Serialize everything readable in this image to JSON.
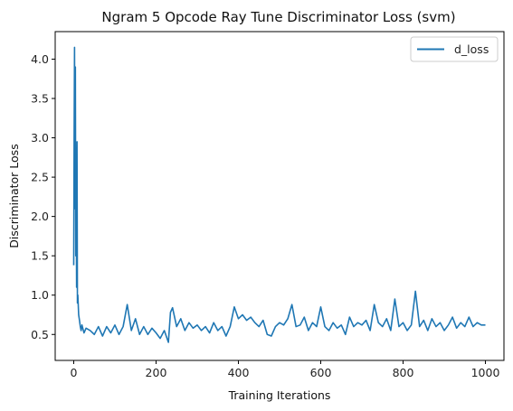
{
  "chart_data": {
    "type": "line",
    "title": "Ngram 5 Opcode Ray Tune Discriminator Loss (svm)",
    "xlabel": "Training Iterations",
    "ylabel": "Discriminator Loss",
    "xlim": [
      -45,
      1045
    ],
    "ylim": [
      0.17,
      4.35
    ],
    "xticks": [
      0,
      200,
      400,
      600,
      800,
      1000
    ],
    "yticks": [
      0.5,
      1.0,
      1.5,
      2.0,
      2.5,
      3.0,
      3.5,
      4.0
    ],
    "grid": false,
    "legend_position": "top-right",
    "series": [
      {
        "name": "d_loss",
        "color": "#1f77b4",
        "points": [
          [
            0,
            1.38
          ],
          [
            1,
            3.0
          ],
          [
            2,
            4.15
          ],
          [
            3,
            2.1
          ],
          [
            4,
            3.9
          ],
          [
            5,
            1.5
          ],
          [
            6,
            2.4
          ],
          [
            7,
            1.1
          ],
          [
            8,
            2.95
          ],
          [
            9,
            0.9
          ],
          [
            10,
            1.0
          ],
          [
            12,
            0.75
          ],
          [
            14,
            0.68
          ],
          [
            16,
            0.6
          ],
          [
            18,
            0.55
          ],
          [
            20,
            0.62
          ],
          [
            25,
            0.52
          ],
          [
            30,
            0.58
          ],
          [
            40,
            0.55
          ],
          [
            50,
            0.5
          ],
          [
            60,
            0.6
          ],
          [
            70,
            0.48
          ],
          [
            80,
            0.6
          ],
          [
            90,
            0.52
          ],
          [
            100,
            0.62
          ],
          [
            110,
            0.5
          ],
          [
            120,
            0.6
          ],
          [
            130,
            0.88
          ],
          [
            140,
            0.55
          ],
          [
            150,
            0.7
          ],
          [
            160,
            0.5
          ],
          [
            170,
            0.6
          ],
          [
            180,
            0.5
          ],
          [
            190,
            0.58
          ],
          [
            200,
            0.52
          ],
          [
            210,
            0.45
          ],
          [
            220,
            0.55
          ],
          [
            230,
            0.4
          ],
          [
            235,
            0.78
          ],
          [
            240,
            0.84
          ],
          [
            250,
            0.6
          ],
          [
            260,
            0.7
          ],
          [
            270,
            0.55
          ],
          [
            280,
            0.65
          ],
          [
            290,
            0.58
          ],
          [
            300,
            0.62
          ],
          [
            310,
            0.55
          ],
          [
            320,
            0.6
          ],
          [
            330,
            0.52
          ],
          [
            340,
            0.65
          ],
          [
            350,
            0.55
          ],
          [
            360,
            0.6
          ],
          [
            370,
            0.48
          ],
          [
            380,
            0.6
          ],
          [
            390,
            0.85
          ],
          [
            400,
            0.7
          ],
          [
            410,
            0.75
          ],
          [
            420,
            0.68
          ],
          [
            430,
            0.72
          ],
          [
            440,
            0.65
          ],
          [
            450,
            0.6
          ],
          [
            460,
            0.68
          ],
          [
            470,
            0.5
          ],
          [
            480,
            0.48
          ],
          [
            490,
            0.6
          ],
          [
            500,
            0.65
          ],
          [
            510,
            0.62
          ],
          [
            520,
            0.7
          ],
          [
            530,
            0.88
          ],
          [
            540,
            0.6
          ],
          [
            550,
            0.62
          ],
          [
            560,
            0.72
          ],
          [
            570,
            0.55
          ],
          [
            580,
            0.65
          ],
          [
            590,
            0.6
          ],
          [
            600,
            0.85
          ],
          [
            610,
            0.6
          ],
          [
            620,
            0.55
          ],
          [
            630,
            0.65
          ],
          [
            640,
            0.58
          ],
          [
            650,
            0.62
          ],
          [
            660,
            0.5
          ],
          [
            670,
            0.72
          ],
          [
            680,
            0.6
          ],
          [
            690,
            0.65
          ],
          [
            700,
            0.62
          ],
          [
            710,
            0.68
          ],
          [
            720,
            0.55
          ],
          [
            730,
            0.88
          ],
          [
            740,
            0.65
          ],
          [
            750,
            0.6
          ],
          [
            760,
            0.7
          ],
          [
            770,
            0.55
          ],
          [
            780,
            0.95
          ],
          [
            790,
            0.6
          ],
          [
            800,
            0.65
          ],
          [
            810,
            0.55
          ],
          [
            820,
            0.62
          ],
          [
            830,
            1.05
          ],
          [
            840,
            0.6
          ],
          [
            850,
            0.68
          ],
          [
            860,
            0.55
          ],
          [
            870,
            0.7
          ],
          [
            880,
            0.6
          ],
          [
            890,
            0.65
          ],
          [
            900,
            0.55
          ],
          [
            910,
            0.62
          ],
          [
            920,
            0.72
          ],
          [
            930,
            0.58
          ],
          [
            940,
            0.65
          ],
          [
            950,
            0.6
          ],
          [
            960,
            0.72
          ],
          [
            970,
            0.6
          ],
          [
            980,
            0.65
          ],
          [
            990,
            0.62
          ],
          [
            1000,
            0.62
          ]
        ]
      }
    ]
  }
}
